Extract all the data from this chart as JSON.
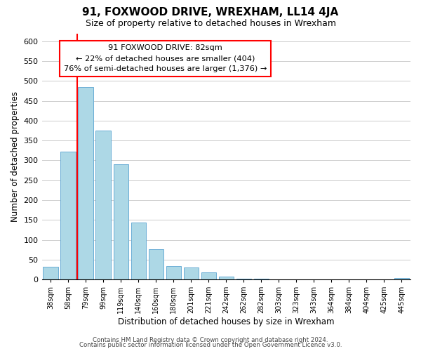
{
  "title": "91, FOXWOOD DRIVE, WREXHAM, LL14 4JA",
  "subtitle": "Size of property relative to detached houses in Wrexham",
  "xlabel": "Distribution of detached houses by size in Wrexham",
  "ylabel": "Number of detached properties",
  "bar_labels": [
    "38sqm",
    "58sqm",
    "79sqm",
    "99sqm",
    "119sqm",
    "140sqm",
    "160sqm",
    "180sqm",
    "201sqm",
    "221sqm",
    "242sqm",
    "262sqm",
    "282sqm",
    "303sqm",
    "323sqm",
    "343sqm",
    "364sqm",
    "384sqm",
    "404sqm",
    "425sqm",
    "445sqm"
  ],
  "bar_values": [
    32,
    322,
    484,
    375,
    291,
    144,
    76,
    33,
    30,
    18,
    7,
    2,
    1,
    0,
    0,
    0,
    0,
    0,
    0,
    0,
    3
  ],
  "bar_color": "#add8e6",
  "bar_edge_color": "#6baed6",
  "annotation_text_line1": "91 FOXWOOD DRIVE: 82sqm",
  "annotation_text_line2": "← 22% of detached houses are smaller (404)",
  "annotation_text_line3": "76% of semi-detached houses are larger (1,376) →",
  "ylim": [
    0,
    620
  ],
  "yticks": [
    0,
    50,
    100,
    150,
    200,
    250,
    300,
    350,
    400,
    450,
    500,
    550,
    600
  ],
  "footer_line1": "Contains HM Land Registry data © Crown copyright and database right 2024.",
  "footer_line2": "Contains public sector information licensed under the Open Government Licence v3.0.",
  "bg_color": "#ffffff",
  "grid_color": "#cccccc",
  "fig_width": 6.0,
  "fig_height": 5.0
}
